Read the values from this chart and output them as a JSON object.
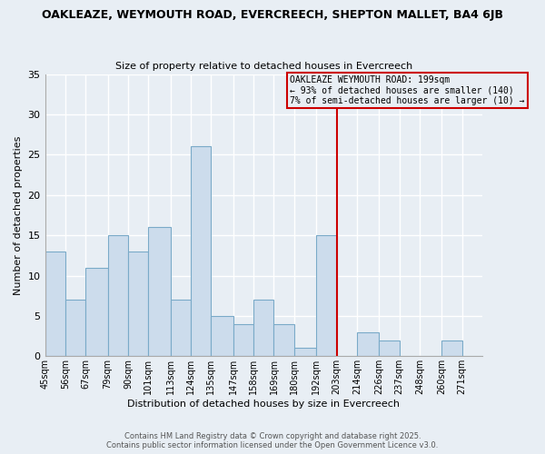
{
  "title_line1": "OAKLEAZE, WEYMOUTH ROAD, EVERCREECH, SHEPTON MALLET, BA4 6JB",
  "title_line2": "Size of property relative to detached houses in Evercreech",
  "xlabel": "Distribution of detached houses by size in Evercreech",
  "ylabel": "Number of detached properties",
  "footer_line1": "Contains HM Land Registry data © Crown copyright and database right 2025.",
  "footer_line2": "Contains public sector information licensed under the Open Government Licence v3.0.",
  "bin_labels": [
    "45sqm",
    "56sqm",
    "67sqm",
    "79sqm",
    "90sqm",
    "101sqm",
    "113sqm",
    "124sqm",
    "135sqm",
    "147sqm",
    "158sqm",
    "169sqm",
    "180sqm",
    "192sqm",
    "203sqm",
    "214sqm",
    "226sqm",
    "237sqm",
    "248sqm",
    "260sqm",
    "271sqm"
  ],
  "bar_values": [
    13,
    7,
    11,
    15,
    13,
    16,
    7,
    26,
    5,
    4,
    7,
    4,
    1,
    15,
    0,
    3,
    2,
    0,
    0,
    2,
    0
  ],
  "bar_color": "#ccdcec",
  "bar_edge_color": "#7aaac8",
  "vline_index": 13,
  "bin_edges": [
    45,
    56,
    67,
    79,
    90,
    101,
    113,
    124,
    135,
    147,
    158,
    169,
    180,
    192,
    203,
    214,
    226,
    237,
    248,
    260,
    271,
    282
  ],
  "annotation_text_line1": "OAKLEAZE WEYMOUTH ROAD: 199sqm",
  "annotation_text_line2": "← 93% of detached houses are smaller (140)",
  "annotation_text_line3": "7% of semi-detached houses are larger (10) →",
  "annotation_box_color": "#cc0000",
  "vline_color": "#cc0000",
  "ylim": [
    0,
    35
  ],
  "yticks": [
    0,
    5,
    10,
    15,
    20,
    25,
    30,
    35
  ],
  "bg_color": "#e8eef4",
  "plot_bg_color": "#e8eef4",
  "grid_color": "#ffffff"
}
